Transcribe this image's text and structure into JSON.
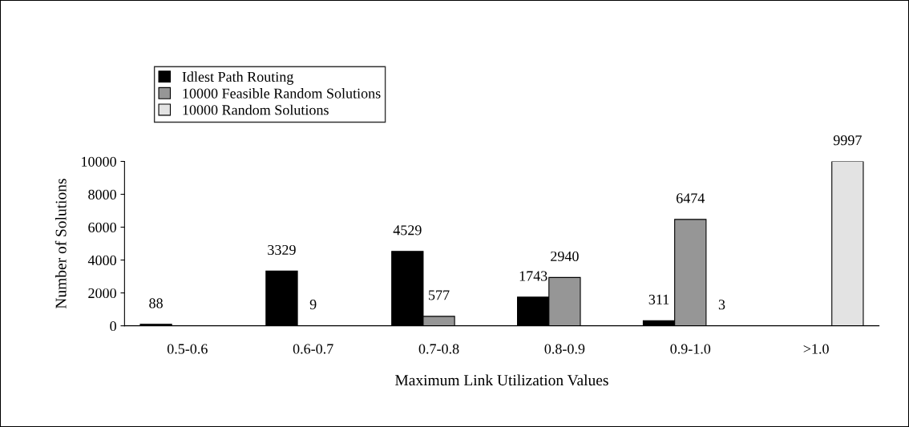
{
  "chart_data": {
    "type": "bar",
    "xlabel": "Maximum Link Utilization Values",
    "ylabel": "Number of Solutions",
    "categories": [
      "0.5-0.6",
      "0.6-0.7",
      "0.7-0.8",
      "0.8-0.9",
      "0.9-1.0",
      ">1.0"
    ],
    "series": [
      {
        "name": "Idlest Path Routing",
        "color": "#000000",
        "values": [
          88,
          3329,
          4529,
          1743,
          311,
          null
        ]
      },
      {
        "name": "10000 Feasible Random Solutions",
        "color": "#969696",
        "values": [
          null,
          9,
          577,
          2940,
          6474,
          null
        ]
      },
      {
        "name": "10000 Random Solutions",
        "color": "#e3e3e3",
        "values": [
          null,
          null,
          null,
          null,
          3,
          9997
        ]
      }
    ],
    "ylim": [
      0,
      10000
    ],
    "yticks": [
      0,
      2000,
      4000,
      6000,
      8000,
      10000
    ],
    "data_labels": true,
    "grid": false,
    "legend": "top left"
  }
}
